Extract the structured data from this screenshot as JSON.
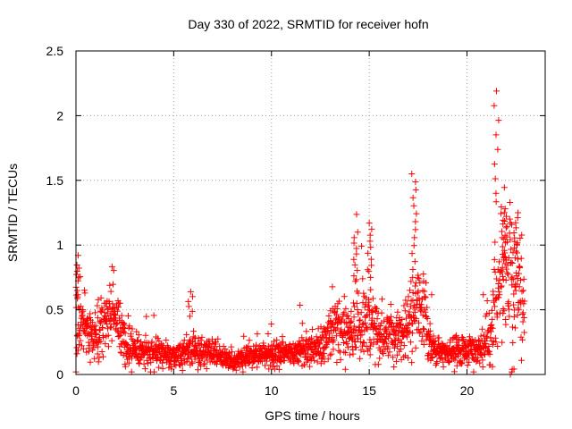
{
  "chart_data": {
    "type": "scatter",
    "title": "Day 330 of 2022, SRMTID for receiver hofn",
    "xlabel": "GPS time / hours",
    "ylabel": "SRMTID / TECUs",
    "xlim": [
      0,
      24
    ],
    "ylim": [
      0,
      2.5
    ],
    "grid": true,
    "marker": "+",
    "x_ticks": [
      0,
      5,
      10,
      15,
      20
    ],
    "x_tick_labels": [
      "0",
      "5",
      "10",
      "15",
      "20"
    ],
    "y_ticks": [
      0,
      0.5,
      1,
      1.5,
      2,
      2.5
    ],
    "y_tick_labels": [
      "0",
      "0.5",
      "1",
      "1.5",
      "2",
      "2.5"
    ],
    "series": [
      {
        "name": "SRMTID",
        "color": "#ff0000",
        "profile": [
          [
            0.0,
            0.42,
            0.18
          ],
          [
            0.25,
            0.38,
            0.14
          ],
          [
            0.5,
            0.33,
            0.1
          ],
          [
            1.0,
            0.3,
            0.1
          ],
          [
            1.5,
            0.38,
            0.12
          ],
          [
            1.8,
            0.5,
            0.12
          ],
          [
            2.0,
            0.45,
            0.12
          ],
          [
            2.3,
            0.35,
            0.1
          ],
          [
            2.7,
            0.25,
            0.08
          ],
          [
            3.0,
            0.2,
            0.06
          ],
          [
            4.0,
            0.17,
            0.05
          ],
          [
            5.0,
            0.14,
            0.05
          ],
          [
            5.5,
            0.16,
            0.05
          ],
          [
            6.0,
            0.18,
            0.06
          ],
          [
            7.0,
            0.17,
            0.05
          ],
          [
            8.0,
            0.1,
            0.04
          ],
          [
            9.0,
            0.15,
            0.05
          ],
          [
            10.0,
            0.15,
            0.05
          ],
          [
            11.0,
            0.17,
            0.05
          ],
          [
            12.0,
            0.2,
            0.06
          ],
          [
            12.6,
            0.25,
            0.07
          ],
          [
            13.0,
            0.33,
            0.1
          ],
          [
            13.5,
            0.38,
            0.12
          ],
          [
            14.0,
            0.33,
            0.12
          ],
          [
            14.5,
            0.4,
            0.14
          ],
          [
            15.0,
            0.45,
            0.14
          ],
          [
            15.5,
            0.3,
            0.1
          ],
          [
            16.0,
            0.3,
            0.1
          ],
          [
            16.5,
            0.28,
            0.09
          ],
          [
            17.0,
            0.35,
            0.12
          ],
          [
            17.4,
            0.55,
            0.15
          ],
          [
            17.8,
            0.5,
            0.15
          ],
          [
            18.0,
            0.3,
            0.1
          ],
          [
            18.3,
            0.18,
            0.05
          ],
          [
            19.0,
            0.17,
            0.05
          ],
          [
            20.0,
            0.18,
            0.06
          ],
          [
            20.8,
            0.2,
            0.07
          ],
          [
            21.2,
            0.28,
            0.1
          ],
          [
            21.5,
            0.7,
            0.25
          ],
          [
            22.0,
            0.8,
            0.28
          ],
          [
            22.5,
            0.8,
            0.25
          ],
          [
            22.8,
            0.6,
            0.2
          ]
        ],
        "bursts": [
          [
            0.05,
            0.6,
            0.92,
            14
          ],
          [
            5.85,
            0.45,
            0.64,
            6
          ],
          [
            14.3,
            0.72,
            1.1,
            10
          ],
          [
            15.05,
            0.75,
            1.17,
            10
          ],
          [
            17.3,
            0.75,
            1.55,
            14
          ],
          [
            21.5,
            1.4,
            2.19,
            8
          ],
          [
            21.9,
            0.9,
            1.28,
            14
          ],
          [
            22.5,
            0.9,
            1.25,
            10
          ],
          [
            22.3,
            0.0,
            0.04,
            3
          ]
        ],
        "x_start": 0.0,
        "x_end": 22.95,
        "x_step": 0.012,
        "seed": 330
      }
    ]
  }
}
